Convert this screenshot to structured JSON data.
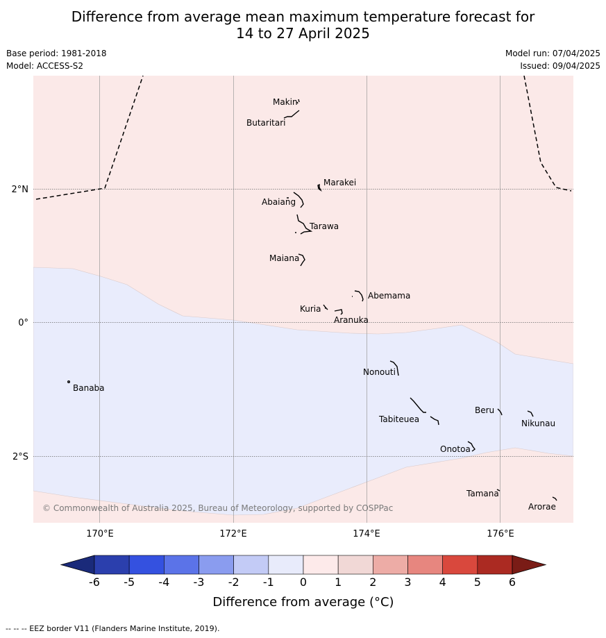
{
  "title_line1": "Difference from average mean maximum temperature forecast for",
  "title_line2": "14 to 27 April 2025",
  "base_period": "Base period: 1981-2018",
  "model": "Model: ACCESS-S2",
  "model_run": "Model run: 07/04/2025",
  "issued": "Issued: 09/04/2025",
  "copyright": "© Commonwealth of Australia 2025, Bureau of Meteorology, supported by COSPPac",
  "lon_labels": [
    "170°E",
    "172°E",
    "174°E",
    "176°E"
  ],
  "lat_labels": [
    "2°N",
    "0°",
    "2°S"
  ],
  "colorbar": {
    "label": "Difference from average (°C)",
    "ticks": [
      "-6",
      "-5",
      "-4",
      "-3",
      "-2",
      "-1",
      "0",
      "1",
      "2",
      "3",
      "4",
      "5",
      "6"
    ],
    "colors": [
      "#1a2a7a",
      "#2b3fad",
      "#3451e0",
      "#5b73e8",
      "#8a9cef",
      "#c3cbf6",
      "#e8ebfb",
      "#fdeaea",
      "#f1d8d6",
      "#edaca6",
      "#e7867f",
      "#d9483d",
      "#ab2a22",
      "#7a1c16"
    ]
  },
  "regions": {
    "warm_color": "#fbe9e8",
    "cool_color": "#e9ecfc",
    "warm_value": "0 to 1",
    "cool_value": "-1 to 0"
  },
  "islands": [
    {
      "name": "Makin"
    },
    {
      "name": "Butaritari"
    },
    {
      "name": "Marakei"
    },
    {
      "name": "Abaiang"
    },
    {
      "name": "Tarawa"
    },
    {
      "name": "Maiana"
    },
    {
      "name": "Abemama"
    },
    {
      "name": "Kuria"
    },
    {
      "name": "Aranuka"
    },
    {
      "name": "Banaba"
    },
    {
      "name": "Nonouti"
    },
    {
      "name": "Tabiteuea"
    },
    {
      "name": "Beru"
    },
    {
      "name": "Nikunau"
    },
    {
      "name": "Onotoa"
    },
    {
      "name": "Tamana"
    },
    {
      "name": "Arorae"
    }
  ],
  "eez_note": "--  --  -- EEZ border V11 (Flanders Marine Institute, 2019)."
}
